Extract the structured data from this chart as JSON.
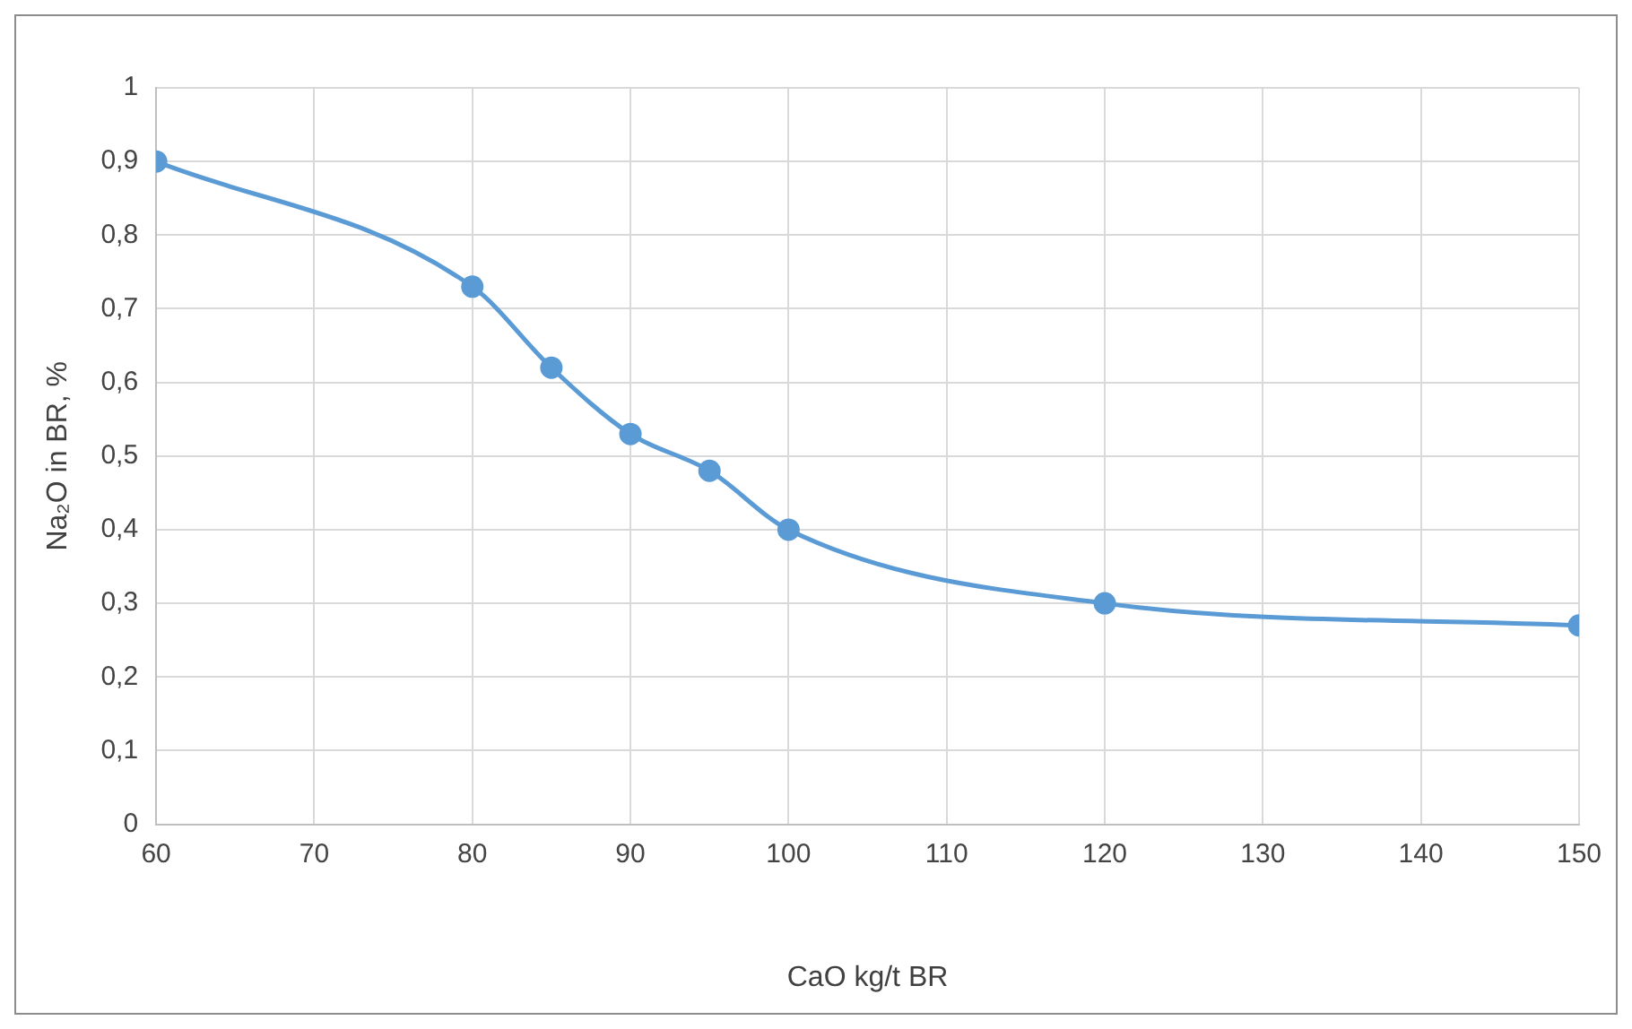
{
  "chart_data": {
    "type": "line",
    "xlabel": "CaO kg/t BR",
    "ylabel": "Na₂O in BR, %",
    "x": [
      60,
      80,
      85,
      90,
      95,
      100,
      120,
      150
    ],
    "series": [
      {
        "color": "#5b9bd5",
        "values": [
          0.9,
          0.73,
          0.62,
          0.53,
          0.48,
          0.4,
          0.3,
          0.27
        ]
      }
    ],
    "xlim": [
      60,
      150
    ],
    "xticks": [
      60,
      70,
      80,
      90,
      100,
      110,
      120,
      130,
      140,
      150
    ],
    "ylim": [
      0,
      1
    ],
    "yticks": [
      0,
      {
        "value": 0.1,
        "label": "0,1"
      },
      {
        "value": 0.2,
        "label": "0,2"
      },
      {
        "value": 0.3,
        "label": "0,3"
      },
      {
        "value": 0.4,
        "label": "0,4"
      },
      {
        "value": 0.5,
        "label": "0,5"
      },
      {
        "value": 0.6,
        "label": "0,6"
      },
      {
        "value": 0.7,
        "label": "0,7"
      },
      {
        "value": 0.8,
        "label": "0,8"
      },
      {
        "value": 0.9,
        "label": "0,9"
      },
      1
    ],
    "grid": true,
    "legend": false,
    "marker": "circle",
    "line_style": "solid"
  }
}
